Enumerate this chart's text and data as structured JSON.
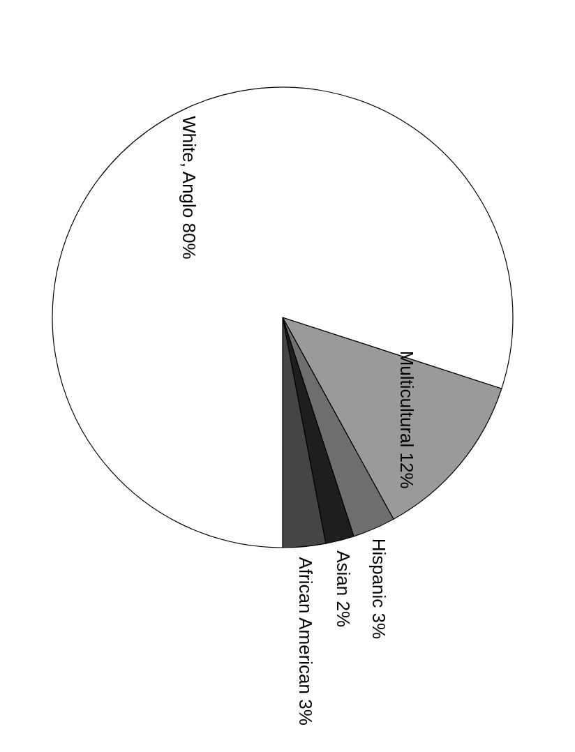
{
  "chart_data": {
    "type": "pie",
    "categories": [
      "Multicultural 12%",
      "Hispanic 3%",
      "Asian 2%",
      "African American 3%",
      "White, Anglo 80%"
    ],
    "values": [
      12,
      3,
      2,
      3,
      80
    ],
    "colors": [
      "#9a9a9a",
      "#6e6e6e",
      "#1e1e1e",
      "#454545",
      "#ffffff"
    ]
  }
}
